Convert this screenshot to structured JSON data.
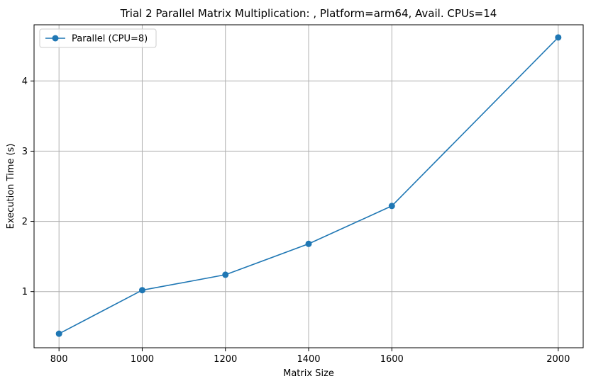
{
  "chart_data": {
    "type": "line",
    "title": "Trial 2 Parallel Matrix Multiplication: , Platform=arm64, Avail. CPUs=14",
    "xlabel": "Matrix Size",
    "ylabel": "Execution Time (s)",
    "xlim": [
      740,
      2060
    ],
    "ylim": [
      0.2,
      4.8
    ],
    "xticks": [
      800,
      1000,
      1200,
      1400,
      1600,
      2000
    ],
    "yticks": [
      1,
      2,
      3,
      4
    ],
    "grid": true,
    "legend_position": "top-left",
    "series": [
      {
        "name": "Parallel (CPU=8)",
        "color": "#1f77b4",
        "marker": "circle",
        "x": [
          800,
          1000,
          1200,
          1400,
          1600,
          2000
        ],
        "y": [
          0.4,
          1.02,
          1.24,
          1.68,
          2.22,
          4.62
        ]
      }
    ]
  }
}
